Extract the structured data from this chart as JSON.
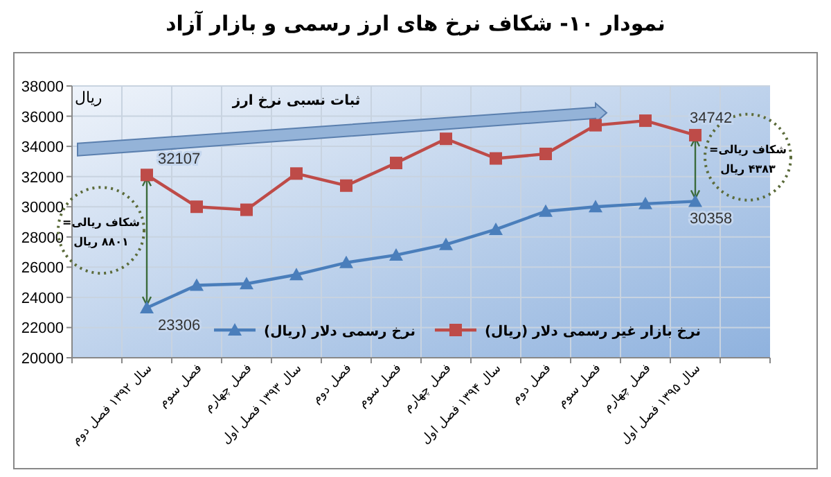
{
  "chart_data": {
    "type": "line",
    "title": "نمودار ۱۰- شکاف نرخ های ارز رسمی و بازار آزاد",
    "ylabel": "ریال",
    "categories": [
      null,
      "سال ۱۳۹۲ فصل دوم",
      "فصل سوم",
      "فصل چهارم",
      "سال ۱۳۹۳ فصل اول",
      "فصل دوم",
      "فصل سوم",
      "فصل چهارم",
      "سال ۱۳۹۴ فصل اول",
      "فصل دوم",
      "فصل سوم",
      "فصل چهارم",
      "سال ۱۳۹۵ فصل اول",
      null
    ],
    "series": [
      {
        "name": "نرخ رسمی دلار (ریال)",
        "color": "#4a7ebb",
        "marker": "triangle",
        "values": [
          null,
          23306,
          24800,
          24900,
          25500,
          26300,
          26800,
          27500,
          28500,
          29700,
          30000,
          30200,
          30358,
          null
        ],
        "value_labels": [
          null,
          "23306",
          null,
          null,
          null,
          null,
          null,
          null,
          null,
          null,
          null,
          null,
          "30358",
          null
        ]
      },
      {
        "name": "نرخ بازار غیر رسمی دلار (ریال)",
        "color": "#be4b48",
        "marker": "square",
        "values": [
          null,
          32107,
          30000,
          29800,
          32200,
          31400,
          32900,
          34500,
          33200,
          33500,
          35400,
          35700,
          34742,
          null
        ],
        "value_labels": [
          null,
          "32107",
          null,
          null,
          null,
          null,
          null,
          null,
          null,
          null,
          null,
          null,
          "34742",
          null
        ]
      }
    ],
    "ylim": [
      20000,
      38000
    ],
    "yticks": [
      20000,
      22000,
      24000,
      26000,
      28000,
      30000,
      32000,
      34000,
      36000,
      38000
    ],
    "grid": true,
    "legend": "bottom",
    "annotations": [
      "ثبات نسبی نرخ ارز",
      "شکاف ریالی= ۸۸۰۱ ریال",
      {
        "text": "شکاف ریالی= ۴۳۸۳ ریال",
        "x": "سال ۱۳۹۵ فصل اول",
        "y": 34742
      }
    ]
  }
}
